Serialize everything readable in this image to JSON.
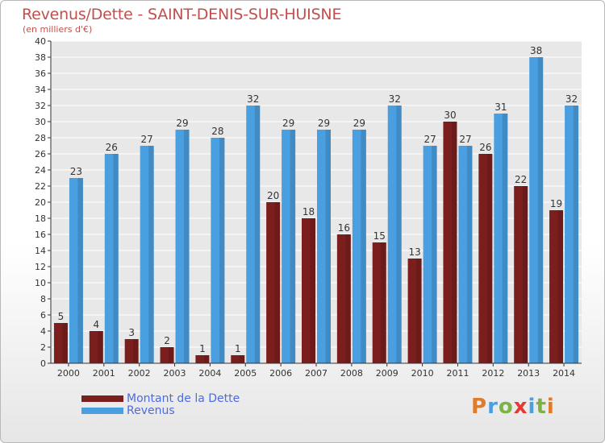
{
  "header": {
    "title": "Revenus/Dette - SAINT-DENIS-SUR-HUISNE",
    "subtitle": "(en milliers d'€)"
  },
  "legend": {
    "items": [
      {
        "label": "Montant de la Dette",
        "color": "#7b1e1e"
      },
      {
        "label": "Revenus",
        "color": "#4a9fe0"
      }
    ]
  },
  "logo": {
    "text": "Proxiti",
    "letter_colors": [
      "#e07b2a",
      "#4a9fe0",
      "#7cb342",
      "#e53935",
      "#4a9fe0",
      "#7cb342",
      "#e07b2a"
    ]
  },
  "colors": {
    "dette": "#7b1e1e",
    "revenus": "#4a9fe0",
    "axis": "#333333",
    "grid": "#ffffff",
    "plot_bg": "#e8e8e8"
  },
  "chart_data": {
    "type": "bar",
    "categories": [
      "2000",
      "2001",
      "2002",
      "2003",
      "2004",
      "2005",
      "2006",
      "2007",
      "2008",
      "2009",
      "2010",
      "2011",
      "2012",
      "2013",
      "2014"
    ],
    "series": [
      {
        "name": "Montant de la Dette",
        "values": [
          5,
          4,
          3,
          2,
          1,
          1,
          20,
          18,
          16,
          15,
          13,
          30,
          26,
          22,
          19
        ]
      },
      {
        "name": "Revenus",
        "values": [
          23,
          26,
          27,
          29,
          28,
          32,
          29,
          29,
          29,
          32,
          27,
          27,
          31,
          38,
          32
        ]
      }
    ],
    "title": "Revenus/Dette - SAINT-DENIS-SUR-HUISNE",
    "subtitle": "(en milliers d'€)",
    "xlabel": "",
    "ylabel": "",
    "ylim": [
      0,
      40
    ],
    "yticks": [
      0,
      2,
      4,
      6,
      8,
      10,
      12,
      14,
      16,
      18,
      20,
      22,
      24,
      26,
      28,
      30,
      32,
      34,
      36,
      38,
      40
    ],
    "data_labels": true,
    "grid": true,
    "legend_position": "bottom-left"
  }
}
